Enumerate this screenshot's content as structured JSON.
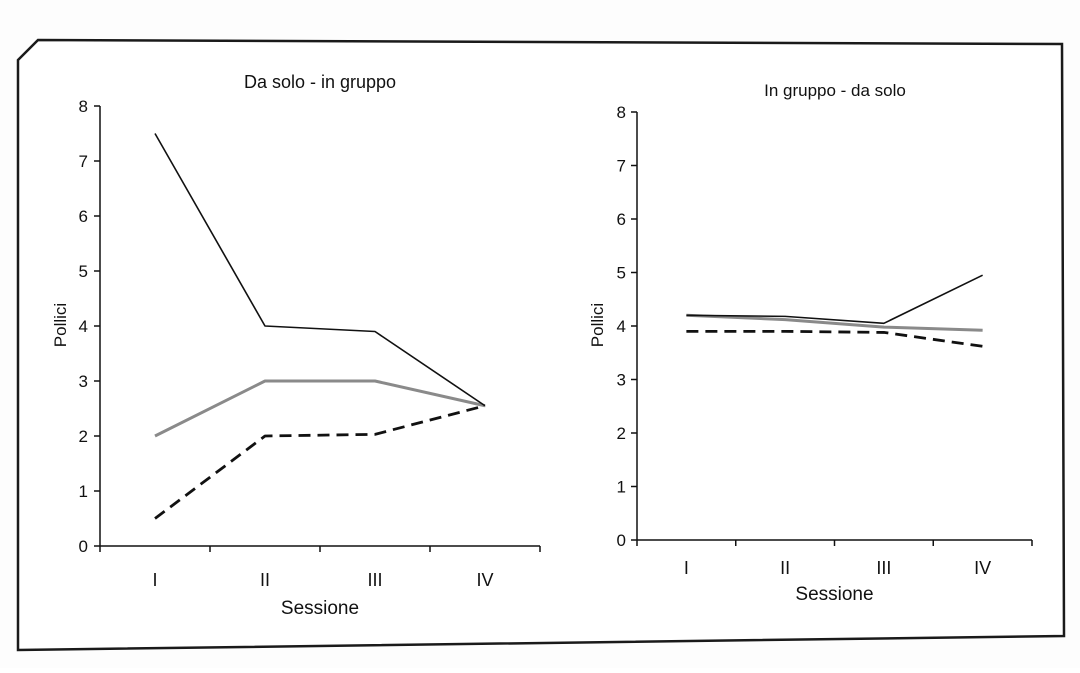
{
  "chart_data": [
    {
      "type": "line",
      "title": "Da solo - in gruppo",
      "xlabel": "Sessione",
      "ylabel": "Pollici",
      "categories": [
        "I",
        "II",
        "III",
        "IV"
      ],
      "ylim": [
        0,
        8
      ],
      "yticks": [
        "0",
        "1",
        "2",
        "3",
        "4",
        "5",
        "6",
        "7",
        "8"
      ],
      "grid": false,
      "series": [
        {
          "values": [
            7.5,
            4.0,
            3.9,
            2.55
          ],
          "style": "solid",
          "color": "#111111"
        },
        {
          "values": [
            2.0,
            3.0,
            3.0,
            2.55
          ],
          "style": "solid",
          "color": "#8a8a8a"
        },
        {
          "values": [
            0.5,
            2.0,
            2.03,
            2.55
          ],
          "style": "dashed",
          "color": "#111111"
        }
      ]
    },
    {
      "type": "line",
      "title": "In gruppo - da solo",
      "xlabel": "Sessione",
      "ylabel": "Pollici",
      "categories": [
        "I",
        "II",
        "III",
        "IV"
      ],
      "ylim": [
        0,
        8
      ],
      "yticks": [
        "0",
        "1",
        "2",
        "3",
        "4",
        "5",
        "6",
        "7",
        "8"
      ],
      "grid": false,
      "series": [
        {
          "values": [
            4.2,
            4.18,
            4.05,
            4.95
          ],
          "style": "solid",
          "color": "#111111"
        },
        {
          "values": [
            4.2,
            4.12,
            3.98,
            3.92
          ],
          "style": "solid",
          "color": "#8a8a8a"
        },
        {
          "values": [
            3.9,
            3.9,
            3.88,
            3.62
          ],
          "style": "dashed",
          "color": "#111111"
        }
      ]
    }
  ]
}
